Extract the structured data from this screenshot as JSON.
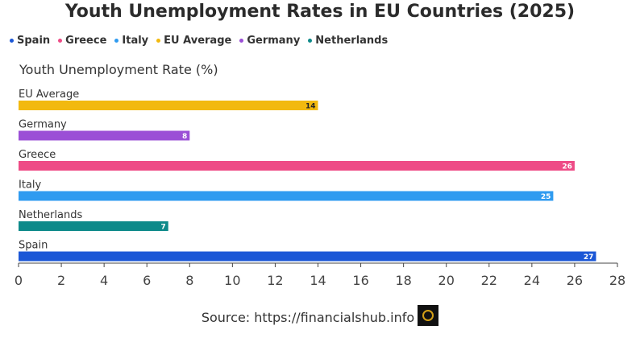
{
  "chart_data": {
    "type": "bar",
    "orientation": "horizontal",
    "title": "Youth Unemployment Rates in EU Countries (2025)",
    "ylabel": "Youth Unemployment Rate (%)",
    "categories": [
      "EU Average",
      "Germany",
      "Greece",
      "Italy",
      "Netherlands",
      "Spain"
    ],
    "values": [
      14,
      8,
      26,
      25,
      7,
      27
    ],
    "colors": [
      "#f2b90f",
      "#9b4fd6",
      "#ee4b86",
      "#2f9bf0",
      "#0e8a8a",
      "#1b57d6"
    ],
    "label_colors": [
      "#222222",
      "#ffffff",
      "#ffffff",
      "#ffffff",
      "#ffffff",
      "#ffffff"
    ],
    "xlim": [
      0,
      28
    ],
    "xticks": [
      0,
      2,
      4,
      6,
      8,
      10,
      12,
      14,
      16,
      18,
      20,
      22,
      24,
      26,
      28
    ],
    "legend_order": [
      "Spain",
      "Greece",
      "Italy",
      "EU Average",
      "Germany",
      "Netherlands"
    ],
    "legend_position": "top-left",
    "grid": false
  },
  "legend": [
    {
      "label": "Spain",
      "color": "#1b57d6"
    },
    {
      "label": "Greece",
      "color": "#ee4b86"
    },
    {
      "label": "Italy",
      "color": "#2f9bf0"
    },
    {
      "label": "EU Average",
      "color": "#f2b90f"
    },
    {
      "label": "Germany",
      "color": "#9b4fd6"
    },
    {
      "label": "Netherlands",
      "color": "#0e8a8a"
    }
  ],
  "footer": {
    "source": "Source: https://financialshub.info"
  }
}
